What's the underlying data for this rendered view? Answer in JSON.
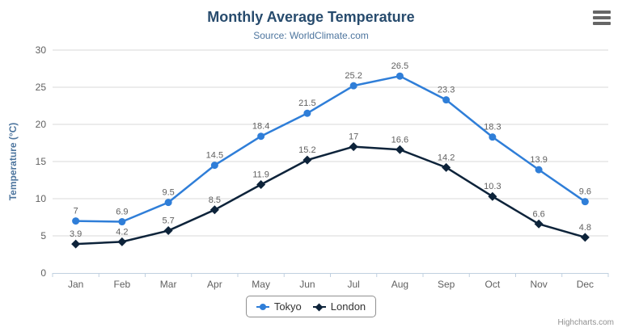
{
  "chart": {
    "title": "Monthly Average Temperature",
    "subtitle": "Source: WorldClimate.com",
    "credits": "Highcharts.com",
    "export_menu_icon": "hamburger-menu",
    "colors": {
      "background": "#ffffff",
      "title": "#274b6d",
      "subtitle": "#4d759e",
      "axis_title": "#4d759e",
      "axis_labels": "#606060",
      "data_labels": "#606060",
      "gridline": "#d8d8d8",
      "axis_line": "#c0d0e0",
      "legend_border": "#909090",
      "legend_text": "#333333",
      "credits_text": "#909090",
      "menu_icon": "#666666"
    }
  },
  "chart_data": {
    "type": "line",
    "title": "Monthly Average Temperature",
    "subtitle": "Source: WorldClimate.com",
    "categories": [
      "Jan",
      "Feb",
      "Mar",
      "Apr",
      "May",
      "Jun",
      "Jul",
      "Aug",
      "Sep",
      "Oct",
      "Nov",
      "Dec"
    ],
    "series": [
      {
        "name": "Tokyo",
        "color": "#2f7ed8",
        "marker": "circle",
        "values": [
          7,
          6.9,
          9.5,
          14.5,
          18.4,
          21.5,
          25.2,
          26.5,
          23.3,
          18.3,
          13.9,
          9.6
        ]
      },
      {
        "name": "London",
        "color": "#0d233a",
        "marker": "diamond",
        "values": [
          3.9,
          4.2,
          5.7,
          8.5,
          11.9,
          15.2,
          17,
          16.6,
          14.2,
          10.3,
          6.6,
          4.8
        ]
      }
    ],
    "xlabel": "",
    "ylabel": "Temperature (°C)",
    "ylim": [
      0,
      30
    ],
    "yticks": [
      0,
      5,
      10,
      15,
      20,
      25,
      30
    ],
    "grid": true,
    "legend_position": "bottom",
    "data_labels": true
  }
}
